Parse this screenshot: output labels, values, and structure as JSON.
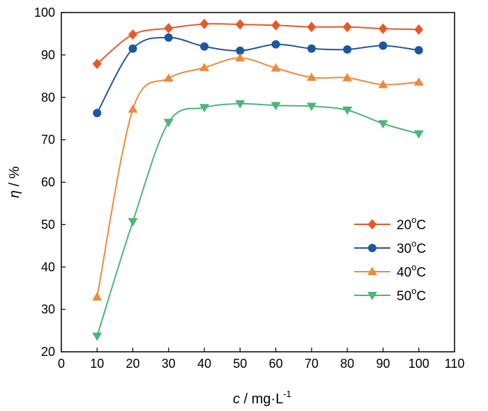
{
  "chart_data": {
    "type": "line",
    "xlabel_var": "c",
    "xlabel_unit": " / mg·L",
    "xlabel_sup": "-1",
    "ylabel_var": "η",
    "ylabel_unit": " / %",
    "xlim": [
      0,
      110
    ],
    "ylim": [
      20,
      100
    ],
    "xticks": [
      0,
      10,
      20,
      30,
      40,
      50,
      60,
      70,
      80,
      90,
      100,
      110
    ],
    "yticks": [
      20,
      30,
      40,
      50,
      60,
      70,
      80,
      90,
      100
    ],
    "grid": false,
    "legend_position": "bottom-right",
    "x": [
      10,
      20,
      30,
      40,
      50,
      60,
      70,
      80,
      90,
      100
    ],
    "series": [
      {
        "name": "20",
        "name_sup": "o",
        "name_suffix": "C",
        "color": "#E8572A",
        "marker": "diamond",
        "values": [
          87.9,
          94.8,
          96.3,
          97.3,
          97.2,
          97.0,
          96.6,
          96.6,
          96.2,
          96.0
        ]
      },
      {
        "name": "30",
        "name_sup": "o",
        "name_suffix": "C",
        "color": "#1F56A0",
        "marker": "circle",
        "values": [
          76.3,
          91.5,
          94.1,
          92.0,
          91.0,
          92.5,
          91.5,
          91.3,
          92.2,
          91.1
        ]
      },
      {
        "name": "40",
        "name_sup": "o",
        "name_suffix": "C",
        "color": "#EE8A3C",
        "marker": "triangle-up",
        "values": [
          32.9,
          77.2,
          84.5,
          87.0,
          89.3,
          86.9,
          84.7,
          84.6,
          83.0,
          83.6
        ]
      },
      {
        "name": "50",
        "name_sup": "o",
        "name_suffix": "C",
        "color": "#4DB578",
        "marker": "triangle-down",
        "values": [
          23.7,
          50.7,
          74.1,
          77.6,
          78.5,
          78.1,
          77.9,
          77.0,
          73.8,
          71.4
        ]
      }
    ]
  }
}
